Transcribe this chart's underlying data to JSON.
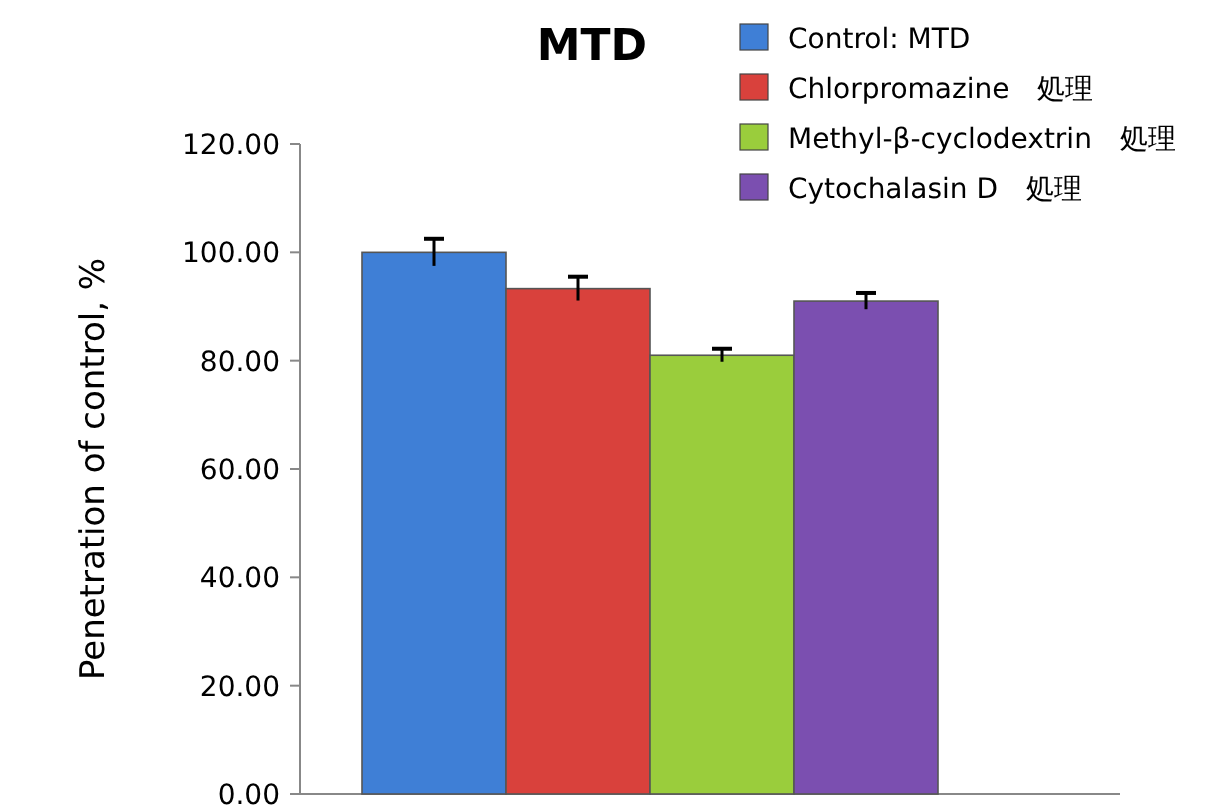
{
  "chart_data": {
    "type": "bar",
    "title": "MTD",
    "ylabel": "Penetration  of control, %",
    "categories": [
      null
    ],
    "series": [
      {
        "name": "Control: MTD",
        "color": "#3f7fd6",
        "values": [
          100
        ],
        "errors": [
          2.5
        ]
      },
      {
        "name": "Chlorpromazine　処理",
        "color": "#d9413c",
        "values": [
          93.3
        ],
        "errors": [
          2.2
        ]
      },
      {
        "name": "Methyl-β-cyclodextrin　処理",
        "color": "#9acd3c",
        "values": [
          81
        ],
        "errors": [
          1.2
        ]
      },
      {
        "name": "Cytochalasin D　処理",
        "color": "#7b4fb0",
        "values": [
          91
        ],
        "errors": [
          1.5
        ]
      }
    ],
    "ylim": [
      0,
      120
    ],
    "yticks": [
      {
        "value": 0,
        "label": "0.00"
      },
      {
        "value": 20,
        "label": "20.00"
      },
      {
        "value": 40,
        "label": "40.00"
      },
      {
        "value": 60,
        "label": "60.00"
      },
      {
        "value": 80,
        "label": "80.00"
      },
      {
        "value": 100,
        "label": "100.00"
      },
      {
        "value": 120,
        "label": "120.00"
      }
    ],
    "legend": "top right",
    "grid": false
  }
}
